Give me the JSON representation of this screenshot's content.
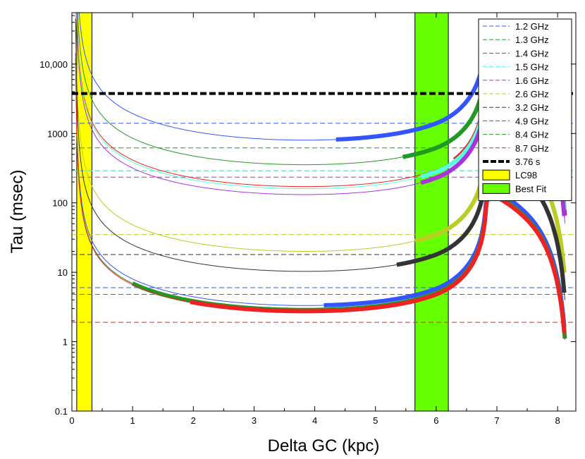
{
  "chart_data": {
    "type": "line",
    "xlabel": "Delta GC (kpc)",
    "ylabel": "Tau (msec)",
    "xlim": [
      0,
      8.3
    ],
    "ylim": [
      0.1,
      55000
    ],
    "yscale": "log",
    "x_ticks": [
      0,
      1,
      2,
      3,
      4,
      5,
      6,
      7,
      8
    ],
    "y_ticks": [
      {
        "value": 0.1,
        "label": "0.1"
      },
      {
        "value": 1,
        "label": "1"
      },
      {
        "value": 10,
        "label": "10"
      },
      {
        "value": 100,
        "label": "100"
      },
      {
        "value": 1000,
        "label": "1000"
      },
      {
        "value": 10000,
        "label": "10,000"
      }
    ],
    "bands": [
      {
        "name": "LC98",
        "x0": 0.08,
        "x1": 0.33,
        "color": "#ffff00"
      },
      {
        "name": "Best Fit",
        "x0": 5.65,
        "x1": 6.2,
        "color": "#66ff00"
      }
    ],
    "reference_line": {
      "name": "3.76 s",
      "value": 3760,
      "color": "#000000"
    },
    "series": [
      {
        "name": "1.2 GHz",
        "color": "#3355ff",
        "dash_value": 1400,
        "anchor": 1400,
        "thick_from": 4.35
      },
      {
        "name": "1.3 GHz",
        "color": "#229922",
        "dash_value": 620,
        "anchor": 620,
        "thick_from": 5.45
      },
      {
        "name": "1.4 GHz",
        "color": "#ee2222",
        "dash_value": 290,
        "anchor": 300,
        "thick_from": 6.3
      },
      {
        "name": "1.5 GHz",
        "color": "#55ffdd",
        "dash_value": 290,
        "anchor": 280,
        "thick_from": 5.75
      },
      {
        "name": "1.6 GHz",
        "color": "#aa33dd",
        "dash_value": 235,
        "anchor": 230,
        "thick_from": 5.75
      },
      {
        "name": "2.6 GHz",
        "color": "#bbcc22",
        "dash_value": 35,
        "anchor": 35,
        "thick_from": 5.65
      },
      {
        "name": "3.2 GHz",
        "color": "#333333",
        "dash_value": 18,
        "anchor": 18,
        "thick_from": 5.35
      },
      {
        "name": "4.9 GHz",
        "color": "#3355ff",
        "dash_value": 6,
        "anchor": 5.8,
        "thick_from": 4.15
      },
      {
        "name": "8.4 GHz",
        "color": "#229922",
        "dash_value": 4.8,
        "anchor": 5.0,
        "thick_from": 1.0
      },
      {
        "name": "8.7 GHz",
        "color": "#ee2222",
        "dash_value": 1.9,
        "anchor": 4.8,
        "thick_from": 1.95
      }
    ]
  }
}
